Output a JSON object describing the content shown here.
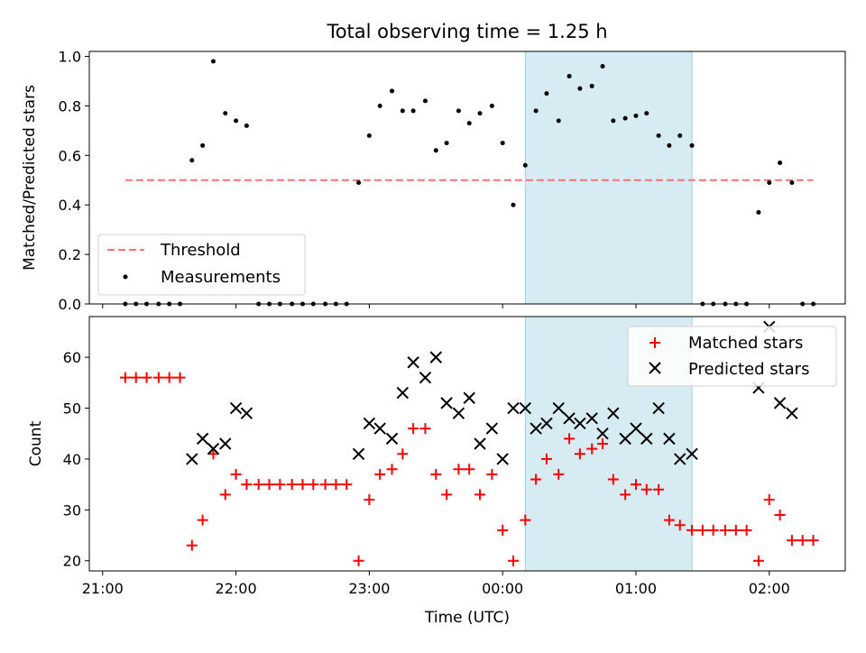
{
  "chart_data": {
    "title": "Total observing time = 1.25 h",
    "xlabel": "Time (UTC)",
    "x_ticks": [
      "21:00",
      "22:00",
      "23:00",
      "00:00",
      "01:00",
      "02:00"
    ],
    "x_tick_values": [
      21.0,
      22.0,
      23.0,
      24.0,
      25.0,
      26.0
    ],
    "xlim": [
      20.9,
      26.57
    ],
    "shaded_span": [
      24.17,
      25.42
    ],
    "panels": [
      {
        "type": "scatter",
        "ylabel": "Matched/Predicted stars",
        "ylim": [
          0.0,
          1.02
        ],
        "y_ticks": [
          "0.0",
          "0.2",
          "0.4",
          "0.6",
          "0.8",
          "1.0"
        ],
        "y_tick_values": [
          0.0,
          0.2,
          0.4,
          0.6,
          0.8,
          1.0
        ],
        "legend_position": "lower-left",
        "threshold": {
          "name": "Threshold",
          "value": 0.5,
          "x_range": [
            21.17,
            26.33
          ],
          "color": "#ff7070"
        },
        "series": [
          {
            "name": "Measurements",
            "color": "#000000",
            "marker": "dot",
            "x": [
              21.17,
              21.25,
              21.33,
              21.42,
              21.5,
              21.58,
              21.67,
              21.75,
              21.83,
              21.92,
              22.0,
              22.08,
              22.17,
              22.25,
              22.33,
              22.42,
              22.5,
              22.58,
              22.67,
              22.75,
              22.83,
              22.92,
              23.0,
              23.08,
              23.17,
              23.25,
              23.33,
              23.42,
              23.5,
              23.58,
              23.67,
              23.75,
              23.83,
              23.92,
              24.0,
              24.08,
              24.17,
              24.25,
              24.33,
              24.42,
              24.5,
              24.58,
              24.67,
              24.75,
              24.83,
              24.92,
              25.0,
              25.08,
              25.17,
              25.25,
              25.33,
              25.42,
              25.5,
              25.58,
              25.67,
              25.75,
              25.83,
              25.92,
              26.0,
              26.08,
              26.17,
              26.25,
              26.33
            ],
            "y": [
              0.0,
              0.0,
              0.0,
              0.0,
              0.0,
              0.0,
              0.58,
              0.64,
              0.98,
              0.77,
              0.74,
              0.72,
              0.0,
              0.0,
              0.0,
              0.0,
              0.0,
              0.0,
              0.0,
              0.0,
              0.0,
              0.49,
              0.68,
              0.8,
              0.86,
              0.78,
              0.78,
              0.82,
              0.62,
              0.65,
              0.78,
              0.73,
              0.77,
              0.8,
              0.65,
              0.4,
              0.56,
              0.78,
              0.85,
              0.74,
              0.92,
              0.87,
              0.88,
              0.96,
              0.74,
              0.75,
              0.76,
              0.77,
              0.68,
              0.64,
              0.68,
              0.64,
              0.0,
              0.0,
              0.0,
              0.0,
              0.0,
              0.37,
              0.49,
              0.57,
              0.49,
              0.0,
              0.0
            ]
          }
        ]
      },
      {
        "type": "scatter",
        "ylabel": "Count",
        "ylim": [
          18,
          68
        ],
        "y_ticks": [
          "20",
          "30",
          "40",
          "50",
          "60"
        ],
        "y_tick_values": [
          20,
          30,
          40,
          50,
          60
        ],
        "legend_position": "top-right",
        "series": [
          {
            "name": "Matched stars",
            "color": "#ff0000",
            "marker": "plus",
            "x": [
              21.17,
              21.25,
              21.33,
              21.42,
              21.5,
              21.58,
              21.67,
              21.75,
              21.83,
              21.92,
              22.0,
              22.08,
              22.17,
              22.25,
              22.33,
              22.42,
              22.5,
              22.58,
              22.67,
              22.75,
              22.83,
              22.92,
              23.0,
              23.08,
              23.17,
              23.25,
              23.33,
              23.42,
              23.5,
              23.58,
              23.67,
              23.75,
              23.83,
              23.92,
              24.0,
              24.08,
              24.17,
              24.25,
              24.33,
              24.42,
              24.5,
              24.58,
              24.67,
              24.75,
              24.83,
              24.92,
              25.0,
              25.08,
              25.17,
              25.25,
              25.33,
              25.42,
              25.5,
              25.58,
              25.67,
              25.75,
              25.83,
              25.92,
              26.0,
              26.08,
              26.17,
              26.25,
              26.33
            ],
            "y": [
              56,
              56,
              56,
              56,
              56,
              56,
              23,
              28,
              41,
              33,
              37,
              35,
              35,
              35,
              35,
              35,
              35,
              35,
              35,
              35,
              35,
              20,
              32,
              37,
              38,
              41,
              46,
              46,
              37,
              33,
              38,
              38,
              33,
              37,
              26,
              20,
              28,
              36,
              40,
              37,
              44,
              41,
              42,
              43,
              36,
              33,
              35,
              34,
              34,
              28,
              27,
              26,
              26,
              26,
              26,
              26,
              26,
              20,
              32,
              29,
              24,
              24,
              24
            ]
          },
          {
            "name": "Predicted stars",
            "color": "#000000",
            "marker": "x",
            "x": [
              21.67,
              21.75,
              21.83,
              21.92,
              22.0,
              22.08,
              22.92,
              23.0,
              23.08,
              23.17,
              23.25,
              23.33,
              23.42,
              23.5,
              23.58,
              23.67,
              23.75,
              23.83,
              23.92,
              24.0,
              24.08,
              24.17,
              24.25,
              24.33,
              24.42,
              24.5,
              24.58,
              24.67,
              24.75,
              24.83,
              24.92,
              25.0,
              25.08,
              25.17,
              25.25,
              25.33,
              25.42,
              25.92,
              26.0,
              26.08,
              26.17
            ],
            "y": [
              40,
              44,
              42,
              43,
              50,
              49,
              41,
              47,
              46,
              44,
              53,
              59,
              56,
              60,
              51,
              49,
              52,
              43,
              46,
              40,
              50,
              50,
              46,
              47,
              50,
              48,
              47,
              48,
              45,
              49,
              44,
              46,
              44,
              50,
              44,
              40,
              41,
              54,
              66,
              51,
              49
            ]
          }
        ]
      }
    ]
  }
}
